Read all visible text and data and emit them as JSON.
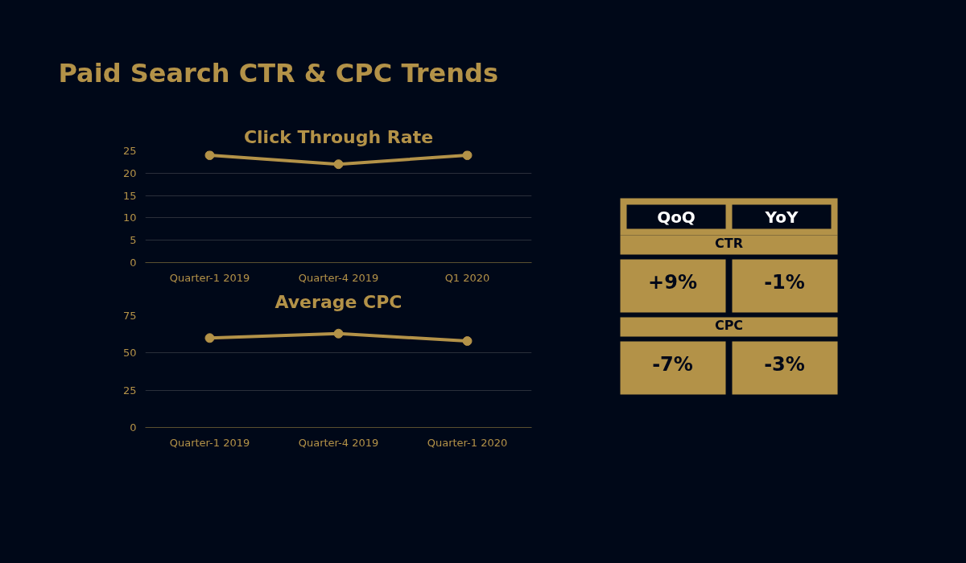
{
  "chart_data": [
    {
      "type": "other",
      "title": "Paid Search CTR & CPC Trends"
    },
    {
      "type": "line",
      "title": "Click Through Rate",
      "categories": [
        "Quarter-1 2019",
        "Quarter-4 2019",
        "Q1 2020"
      ],
      "series": [
        {
          "color": "#b39248",
          "values": [
            24,
            22,
            24
          ]
        }
      ],
      "ylim": [
        0,
        25
      ],
      "yticks": [
        0,
        5,
        10,
        15,
        20,
        25
      ],
      "grid": "y",
      "marker": "circle"
    },
    {
      "type": "line",
      "title": "Average CPC",
      "categories": [
        "Quarter-1 2019",
        "Quarter-4 2019",
        "Quarter-1 2020"
      ],
      "series": [
        {
          "color": "#b39248",
          "values": [
            60,
            63,
            58
          ]
        }
      ],
      "ylim": [
        0,
        75
      ],
      "yticks": [
        0,
        25,
        50,
        75
      ],
      "grid": "y",
      "marker": "circle"
    },
    {
      "type": "other",
      "categories": [
        "QoQ",
        "YoY"
      ],
      "y_categories": [
        "CTR",
        "CPC"
      ],
      "cell_labels": [
        [
          "+9%",
          "-1%"
        ],
        [
          "-7%",
          "-3%"
        ]
      ]
    }
  ]
}
